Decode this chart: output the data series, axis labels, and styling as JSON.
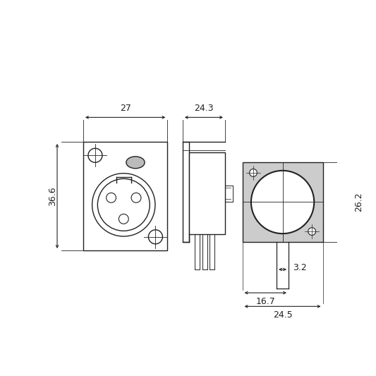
{
  "bg_color": "#ffffff",
  "line_color": "#222222",
  "gray_fill": "#cccccc",
  "fig_width": 5.33,
  "fig_height": 5.33,
  "dpi": 100
}
